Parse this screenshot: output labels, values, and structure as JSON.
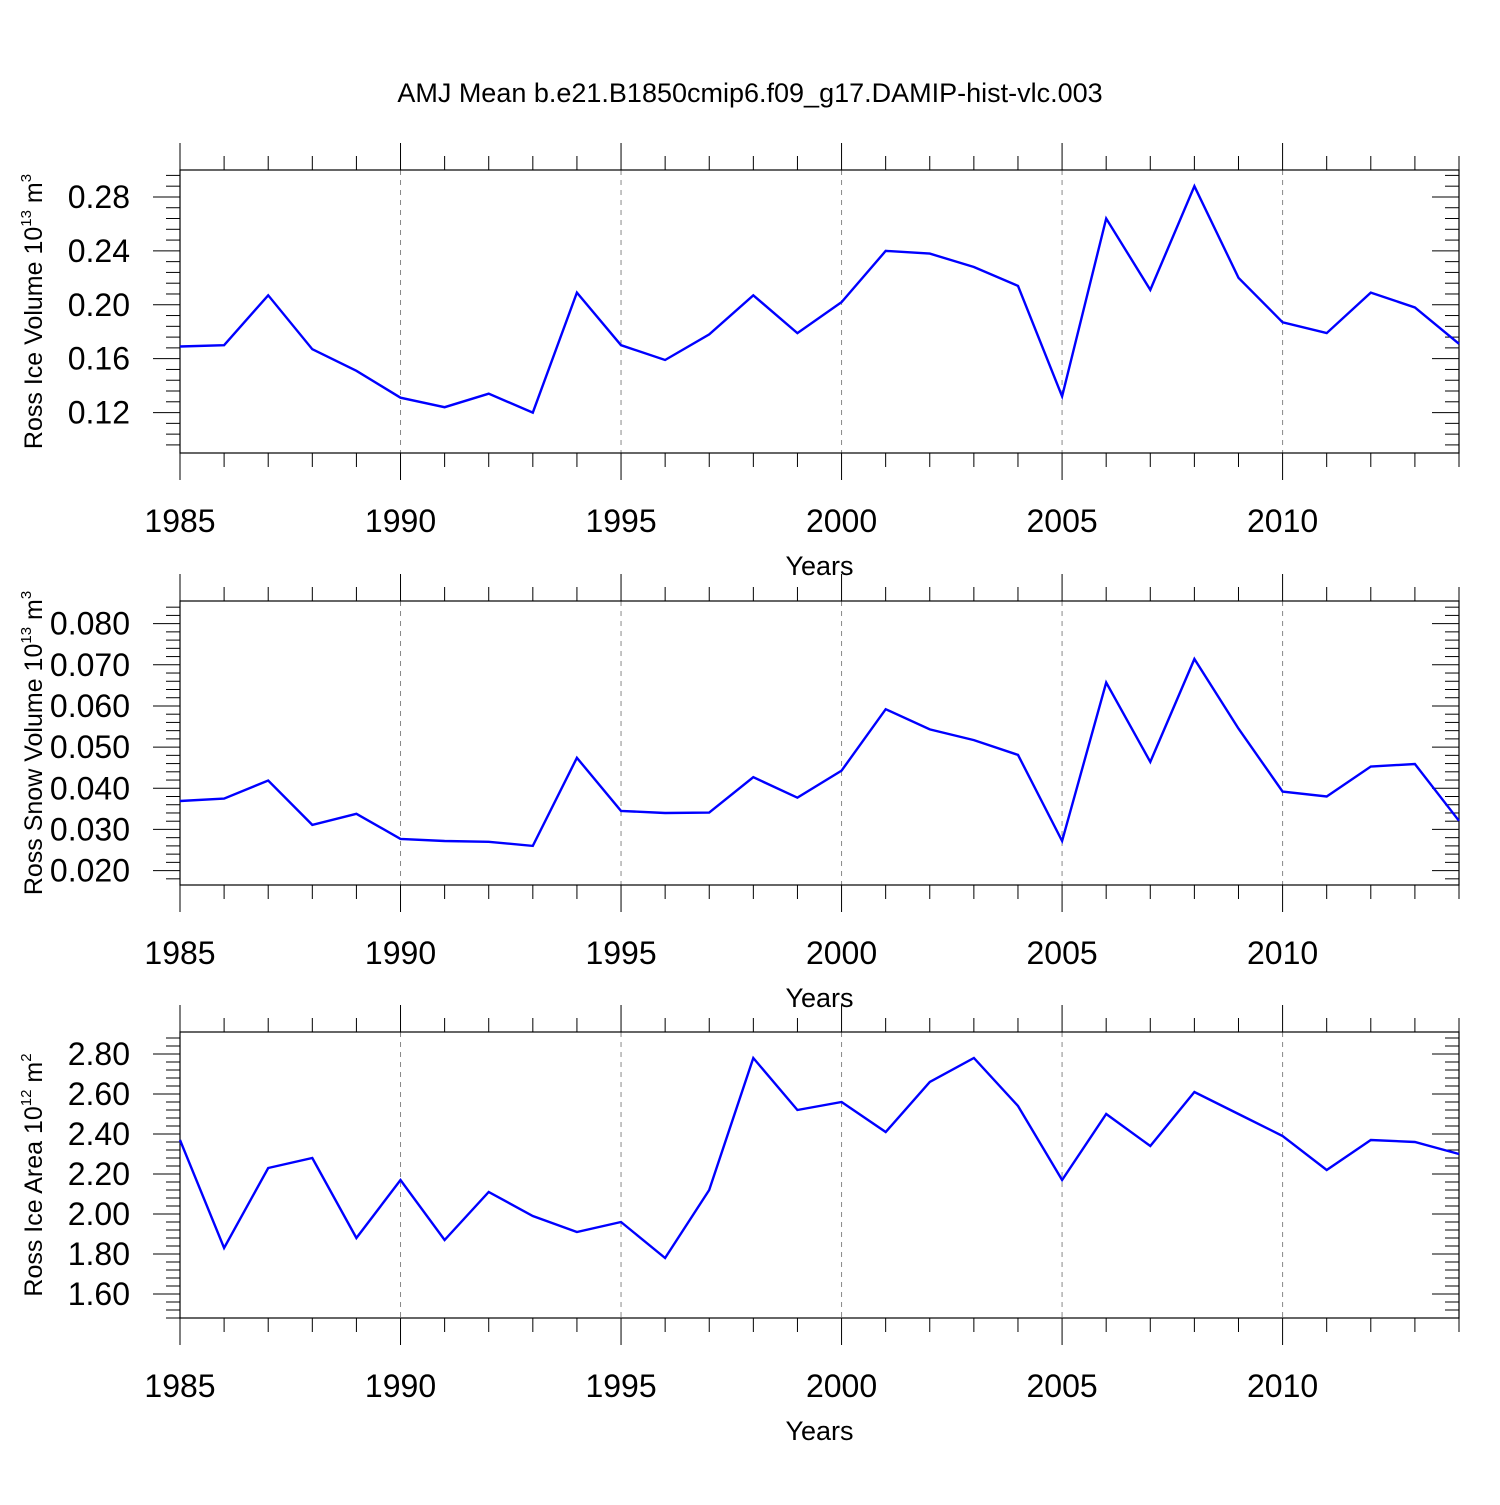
{
  "chart_data": [
    {
      "type": "line",
      "title": "AMJ Mean b.e21.B1850cmip6.f09_g17.DAMIP-hist-vlc.003",
      "xlabel": "Years",
      "ylabel": "Ross Ice Volume 10",
      "ylabel_exp": "13",
      "ylabel_unit": " m",
      "ylabel_unit_exp": "3",
      "xlim": [
        1985,
        2014
      ],
      "ylim": [
        0.09,
        0.3
      ],
      "xticks": [
        "1985",
        "1990",
        "1995",
        "2000",
        "2005",
        "2010"
      ],
      "yticks": [
        "0.12",
        "0.16",
        "0.20",
        "0.24",
        "0.28"
      ],
      "grid": "dashed vertical at major x ticks",
      "line_color": "#0000ff",
      "series": [
        {
          "name": "Ross Ice Volume",
          "x": [
            1985,
            1986,
            1987,
            1988,
            1989,
            1990,
            1991,
            1992,
            1993,
            1994,
            1995,
            1996,
            1997,
            1998,
            1999,
            2000,
            2001,
            2002,
            2003,
            2004,
            2005,
            2006,
            2007,
            2008,
            2009,
            2010,
            2011,
            2012,
            2013,
            2014
          ],
          "values": [
            0.169,
            0.17,
            0.207,
            0.167,
            0.151,
            0.131,
            0.124,
            0.134,
            0.12,
            0.209,
            0.17,
            0.159,
            0.178,
            0.207,
            0.179,
            0.202,
            0.24,
            0.238,
            0.228,
            0.214,
            0.132,
            0.264,
            0.211,
            0.288,
            0.22,
            0.187,
            0.179,
            0.209,
            0.198,
            0.171
          ]
        }
      ]
    },
    {
      "type": "line",
      "xlabel": "Years",
      "ylabel": "Ross Snow Volume 10",
      "ylabel_exp": "13",
      "ylabel_unit": " m",
      "ylabel_unit_exp": "3",
      "xlim": [
        1985,
        2014
      ],
      "ylim": [
        0.0165,
        0.0855
      ],
      "xticks": [
        "1985",
        "1990",
        "1995",
        "2000",
        "2005",
        "2010"
      ],
      "yticks": [
        "0.020",
        "0.030",
        "0.040",
        "0.050",
        "0.060",
        "0.070",
        "0.080"
      ],
      "grid": "dashed vertical at major x ticks",
      "line_color": "#0000ff",
      "series": [
        {
          "name": "Ross Snow Volume",
          "x": [
            1985,
            1986,
            1987,
            1988,
            1989,
            1990,
            1991,
            1992,
            1993,
            1994,
            1995,
            1996,
            1997,
            1998,
            1999,
            2000,
            2001,
            2002,
            2003,
            2004,
            2005,
            2006,
            2007,
            2008,
            2009,
            2010,
            2011,
            2012,
            2013,
            2014
          ],
          "values": [
            0.0369,
            0.0375,
            0.0419,
            0.0311,
            0.0338,
            0.0277,
            0.0272,
            0.027,
            0.026,
            0.0474,
            0.0345,
            0.034,
            0.0341,
            0.0427,
            0.0377,
            0.0443,
            0.0592,
            0.0543,
            0.0517,
            0.0481,
            0.0272,
            0.0657,
            0.0464,
            0.0714,
            0.0545,
            0.0392,
            0.038,
            0.0453,
            0.0459,
            0.0321
          ]
        }
      ]
    },
    {
      "type": "line",
      "xlabel": "Years",
      "ylabel": "Ross Ice Area 10",
      "ylabel_exp": "12",
      "ylabel_unit": " m",
      "ylabel_unit_exp": "2",
      "xlim": [
        1985,
        2014
      ],
      "ylim": [
        1.48,
        2.91
      ],
      "xticks": [
        "1985",
        "1990",
        "1995",
        "2000",
        "2005",
        "2010"
      ],
      "yticks": [
        "1.60",
        "1.80",
        "2.00",
        "2.20",
        "2.40",
        "2.60",
        "2.80"
      ],
      "grid": "dashed vertical at major x ticks",
      "line_color": "#0000ff",
      "series": [
        {
          "name": "Ross Ice Area",
          "x": [
            1985,
            1986,
            1987,
            1988,
            1989,
            1990,
            1991,
            1992,
            1993,
            1994,
            1995,
            1996,
            1997,
            1998,
            1999,
            2000,
            2001,
            2002,
            2003,
            2004,
            2005,
            2006,
            2007,
            2008,
            2009,
            2010,
            2011,
            2012,
            2013,
            2014
          ],
          "values": [
            2.37,
            1.83,
            2.23,
            2.28,
            1.88,
            2.17,
            1.87,
            2.11,
            1.99,
            1.91,
            1.96,
            1.78,
            2.12,
            2.78,
            2.52,
            2.56,
            2.41,
            2.66,
            2.78,
            2.54,
            2.17,
            2.5,
            2.34,
            2.61,
            2.5,
            2.39,
            2.22,
            2.37,
            2.36,
            2.3
          ]
        }
      ]
    }
  ]
}
